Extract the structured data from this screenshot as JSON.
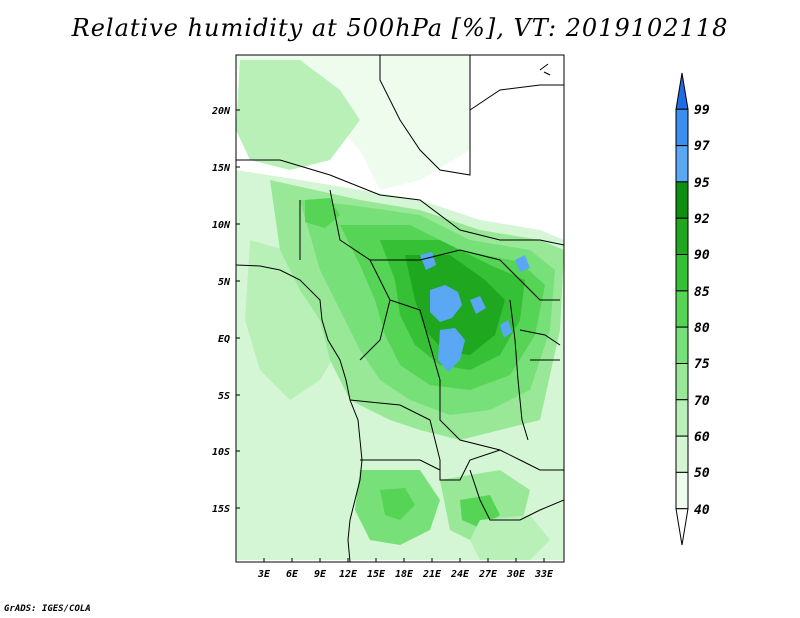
{
  "title": "Relative humidity at 500hPa [%], VT: 2019102118",
  "credit": "GrADS: IGES/COLA",
  "map": {
    "lat_ticks": [
      "20N",
      "15N",
      "10N",
      "5N",
      "EQ",
      "5S",
      "10S",
      "15S"
    ],
    "lon_ticks": [
      "3E",
      "6E",
      "9E",
      "12E",
      "15E",
      "18E",
      "21E",
      "24E",
      "27E",
      "30E",
      "33E"
    ]
  },
  "colorbar": {
    "levels": [
      "99",
      "97",
      "95",
      "92",
      "90",
      "85",
      "80",
      "75",
      "70",
      "60",
      "50",
      "40"
    ],
    "colors": [
      "#1e6be8",
      "#3c8ef0",
      "#5aa7f3",
      "#0f8f0f",
      "#1fa81f",
      "#36c036",
      "#55d455",
      "#78e078",
      "#98e898",
      "#b8f0b8",
      "#d4f6d4",
      "#eefcee",
      "#ffffff"
    ]
  }
}
